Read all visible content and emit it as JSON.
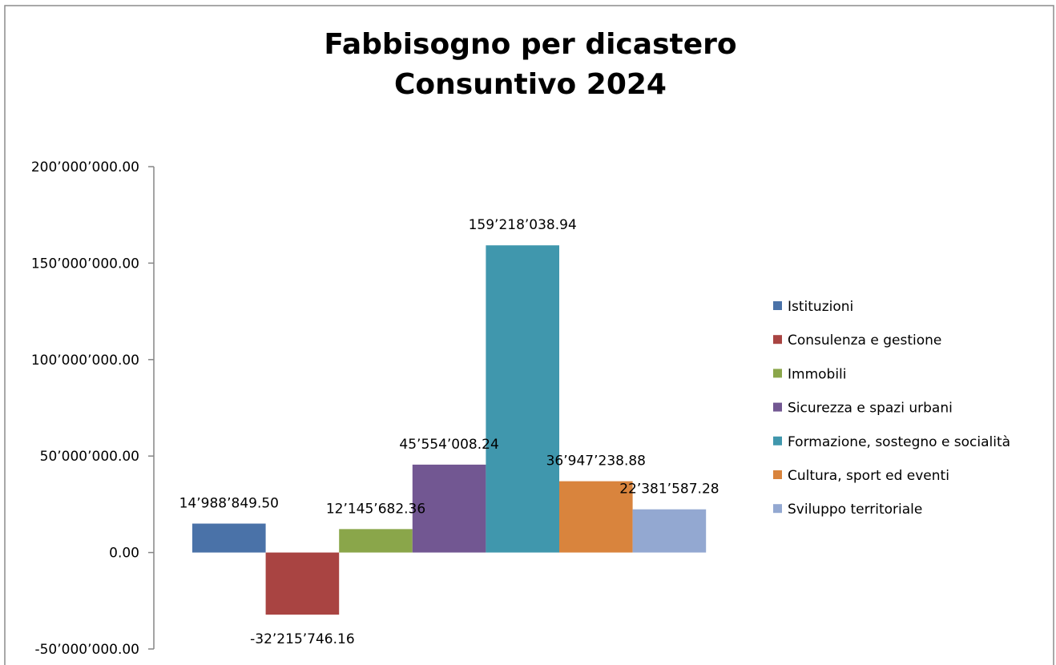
{
  "chart_data": {
    "type": "bar",
    "title": [
      "Fabbisogno per dicastero",
      "Consuntivo 2024"
    ],
    "categories": [
      "Istituzioni",
      "Consulenza e gestione",
      "Immobili",
      "Sicurezza e spazi urbani",
      "Formazione, sostegno e socialità",
      "Cultura, sport ed eventi",
      "Sviluppo territoriale"
    ],
    "values": [
      14988849.5,
      -32215746.16,
      12145682.36,
      45554008.24,
      159218038.94,
      36947238.88,
      22381587.28
    ],
    "value_labels": [
      "14’988’849.50",
      "-32’215’746.16",
      "12’145’682.36",
      "45’554’008.24",
      "159’218’038.94",
      "36’947’238.88",
      "22’381’587.28"
    ],
    "colors": [
      "#4a72a8",
      "#a94442",
      "#8aa64a",
      "#725792",
      "#4097ad",
      "#d9843d",
      "#93a8d1"
    ],
    "ylim": [
      -50000000,
      200000000
    ],
    "yticks": [
      -50000000,
      0,
      50000000,
      100000000,
      150000000,
      200000000
    ],
    "ytick_labels": [
      "-50’000’000.00",
      "0.00",
      "50’000’000.00",
      "100’000’000.00",
      "150’000’000.00",
      "200’000’000.00"
    ],
    "grid": false,
    "legend_position": "right"
  }
}
